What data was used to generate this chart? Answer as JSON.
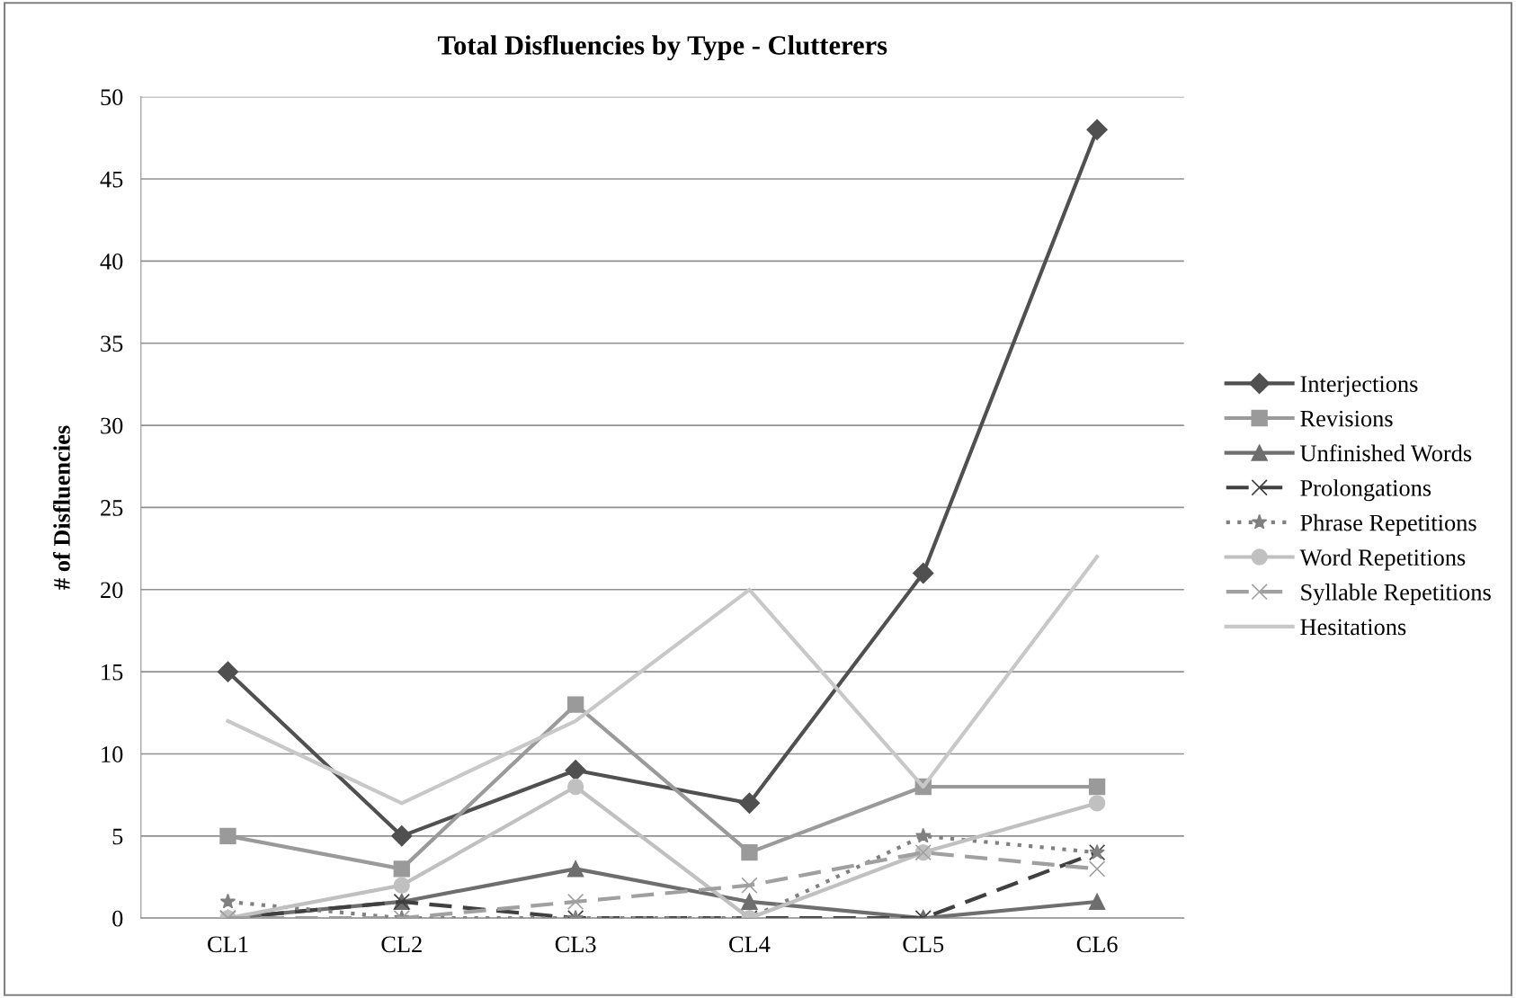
{
  "chart_data": {
    "type": "line",
    "title": "Total Disfluencies by Type - Clutterers",
    "ylabel": "# of Disfluencies",
    "categories": [
      "CL1",
      "CL2",
      "CL3",
      "CL4",
      "CL5",
      "CL6"
    ],
    "ylim": [
      0,
      50
    ],
    "yticks": [
      0,
      5,
      10,
      15,
      20,
      25,
      30,
      35,
      40,
      45,
      50
    ],
    "grid": "y",
    "legend": "right",
    "series": [
      {
        "name": "Interjections",
        "color": "#505050",
        "values": [
          15,
          5,
          9,
          7,
          21,
          48
        ],
        "marker": "diamond",
        "line_style": "solid"
      },
      {
        "name": "Revisions",
        "color": "#9a9a9a",
        "values": [
          5,
          3,
          13,
          4,
          8,
          8
        ],
        "marker": "square",
        "line_style": "solid"
      },
      {
        "name": "Unfinished Words",
        "color": "#6e6e6e",
        "values": [
          0,
          1,
          3,
          1,
          0,
          1
        ],
        "marker": "triangle",
        "line_style": "solid"
      },
      {
        "name": "Prolongations",
        "color": "#404040",
        "values": [
          0,
          1,
          0,
          0,
          0,
          4
        ],
        "marker": "cross",
        "line_style": "dashed"
      },
      {
        "name": "Phrase Repetitions",
        "color": "#808080",
        "values": [
          1,
          0,
          0,
          0,
          5,
          4
        ],
        "marker": "star",
        "line_style": "dotted"
      },
      {
        "name": "Word Repetitions",
        "color": "#c0c0c0",
        "values": [
          0,
          2,
          8,
          0,
          4,
          7
        ],
        "marker": "circle",
        "line_style": "solid"
      },
      {
        "name": "Syllable Repetitions",
        "color": "#a0a0a0",
        "values": [
          0,
          0,
          1,
          2,
          4,
          3
        ],
        "marker": "cross",
        "line_style": "dashed"
      },
      {
        "name": "Hesitations",
        "color": "#c8c8c8",
        "values": [
          12,
          7,
          12,
          20,
          8,
          22
        ],
        "marker": "none",
        "line_style": "solid"
      }
    ]
  }
}
